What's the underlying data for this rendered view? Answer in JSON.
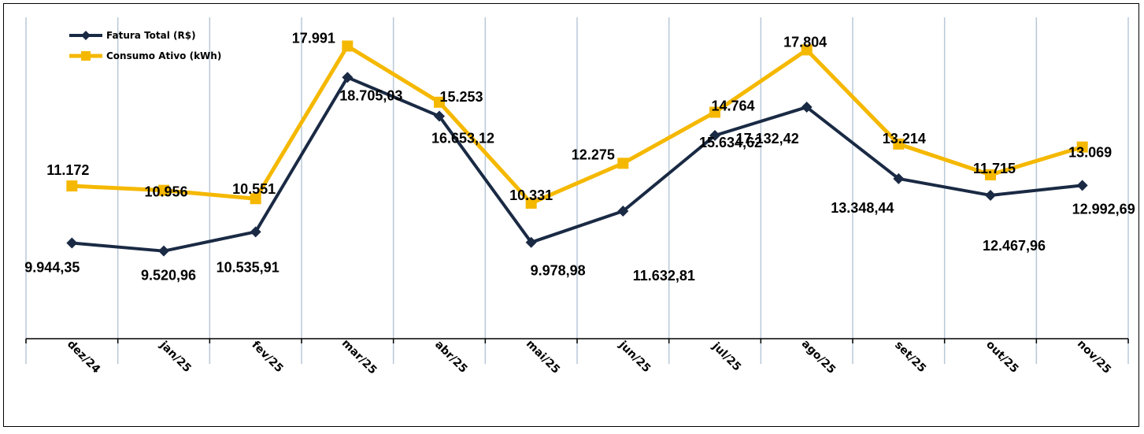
{
  "chart_data": {
    "type": "line",
    "categories": [
      "dez/24",
      "jan/25",
      "fev/25",
      "mar/25",
      "abr/25",
      "mai/25",
      "jun/25",
      "jul/25",
      "ago/25",
      "set/25",
      "out/25",
      "nov/25"
    ],
    "series": [
      {
        "name": "Fatura Total (R$)",
        "color": "#1a2a44",
        "marker": "diamond",
        "values": [
          9944.35,
          9520.96,
          10535.91,
          18705.03,
          16653.12,
          9978.98,
          11632.81,
          15634.62,
          17132.42,
          13348.44,
          12467.96,
          12992.69
        ],
        "labels": [
          "9.944,35",
          "9.520,96",
          "10.535,91",
          "18.705,03",
          "16.653,12",
          "9.978,98",
          "11.632,81",
          "15.634,62",
          "17.132,42",
          "13.348,44",
          "12.467,96",
          "12.992,69"
        ]
      },
      {
        "name": "Consumo Ativo (kWh)",
        "color": "#f5b800",
        "marker": "square",
        "values": [
          11172,
          10956,
          10551,
          17991,
          15253,
          10331,
          12275,
          14764,
          17804,
          13214,
          11715,
          13069
        ],
        "labels": [
          "11.172",
          "10.956",
          "10.551",
          "17.991",
          "15.253",
          "10.331",
          "12.275",
          "14.764",
          "17.804",
          "13.214",
          "11.715",
          "13.069"
        ]
      }
    ],
    "grid": "vertical",
    "legend": "top-left",
    "xlabel": "",
    "ylabel": ""
  }
}
